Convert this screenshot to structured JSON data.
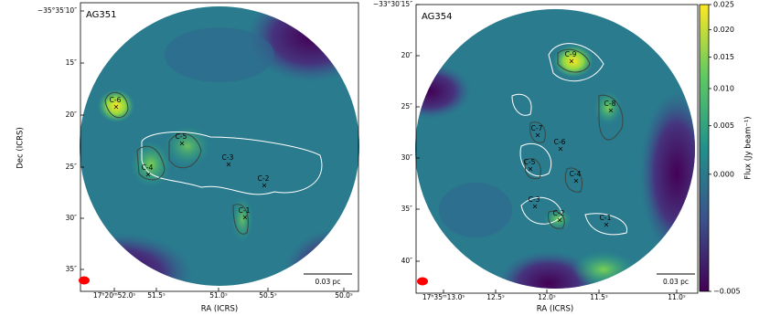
{
  "panels": [
    {
      "title": "AG351",
      "xlabel": "RA (ICRS)",
      "ylabel": "Dec (ICRS)",
      "xticks": [
        "17ʰ20ᵐ52.0ˢ",
        "51.5ˢ",
        "51.0ˢ",
        "50.5ˢ",
        "50.0ˢ"
      ],
      "yticks": [
        "−35°35′10″",
        "15″",
        "20″",
        "25″",
        "30″",
        "35″"
      ],
      "scalebar": "0.03 pc",
      "cores": [
        "C-1",
        "C-2",
        "C-3",
        "C-4",
        "C-5",
        "C-6"
      ]
    },
    {
      "title": "AG354",
      "xlabel": "RA (ICRS)",
      "xticks": [
        "17ʰ35ᵐ13.0ˢ",
        "12.5ˢ",
        "12.0ˢ",
        "11.5ˢ",
        "11.0ˢ"
      ],
      "yticks": [
        "−33°30′15″",
        "20″",
        "25″",
        "30″",
        "35″",
        "40″"
      ],
      "scalebar": "0.03 pc",
      "cores": [
        "C-1",
        "C-2",
        "C-3",
        "C-4",
        "C-5",
        "C-6",
        "C-7",
        "C-8",
        "C-9"
      ]
    }
  ],
  "colorbar": {
    "label": "Flux (Jy beam⁻¹)",
    "lim": [
      -0.005,
      0.025
    ],
    "stretch": "sqrt",
    "ticks": [
      {
        "value": -0.005,
        "label": "−0.005"
      },
      {
        "value": 0,
        "label": "0.000"
      },
      0.005,
      0.01,
      0.015,
      0.02,
      0.025
    ]
  }
}
